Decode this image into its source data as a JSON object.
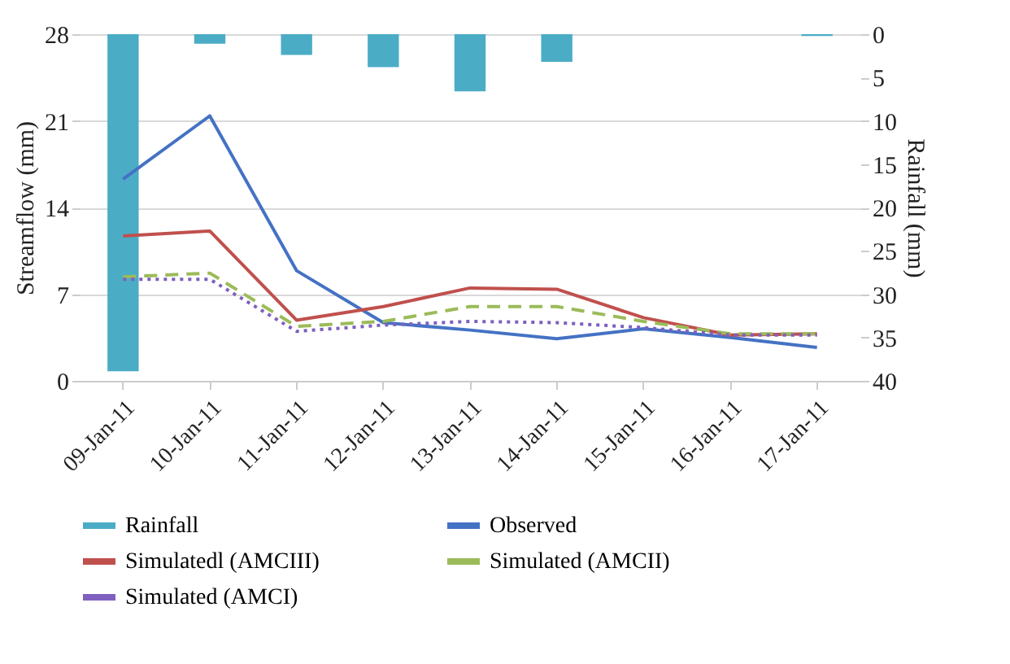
{
  "chart_data": {
    "type": "line",
    "ylabel": "Streamflow (mm)",
    "y2label": "Rainfall (mm)",
    "categories": [
      "09-Jan-11",
      "10-Jan-11",
      "11-Jan-11",
      "12-Jan-11",
      "13-Jan-11",
      "14-Jan-11",
      "15-Jan-11",
      "16-Jan-11",
      "17-Jan-11"
    ],
    "series": [
      {
        "name": "Rainfall",
        "type": "bar",
        "axis": "y2",
        "color": "#4bacc6",
        "values": [
          38.9,
          1.1,
          2.4,
          3.8,
          6.6,
          3.2,
          0,
          0,
          0.2
        ]
      },
      {
        "name": "Observed",
        "color": "#4472c4",
        "line_style": "solid",
        "values": [
          16.3,
          21.4,
          8.9,
          4.7,
          4.1,
          3.4,
          4.2,
          3.5,
          2.7
        ]
      },
      {
        "name": "Simulatedl (AMCIII)",
        "color": "#c0504d",
        "line_style": "solid",
        "values": [
          11.7,
          12.1,
          4.9,
          6.0,
          7.5,
          7.4,
          5.1,
          3.7,
          3.8
        ]
      },
      {
        "name": "Simulated (AMCII)",
        "color": "#9bbb59",
        "line_style": "dashed",
        "values": [
          8.4,
          8.7,
          4.4,
          4.8,
          6.0,
          6.0,
          4.8,
          3.8,
          3.8
        ]
      },
      {
        "name": "Simulated (AMCI)",
        "color": "#7f5fbf",
        "line_style": "dotted",
        "values": [
          8.2,
          8.2,
          4.0,
          4.5,
          4.8,
          4.7,
          4.3,
          3.7,
          3.7
        ]
      }
    ],
    "ylim": [
      0,
      28
    ],
    "yticks": [
      0,
      7,
      14,
      21,
      28
    ],
    "y2lim": [
      40,
      0
    ],
    "y2ticks": [
      0,
      5,
      10,
      15,
      20,
      25,
      30,
      35,
      40
    ],
    "grid": "y",
    "legend": "bottom",
    "marker": "none"
  }
}
